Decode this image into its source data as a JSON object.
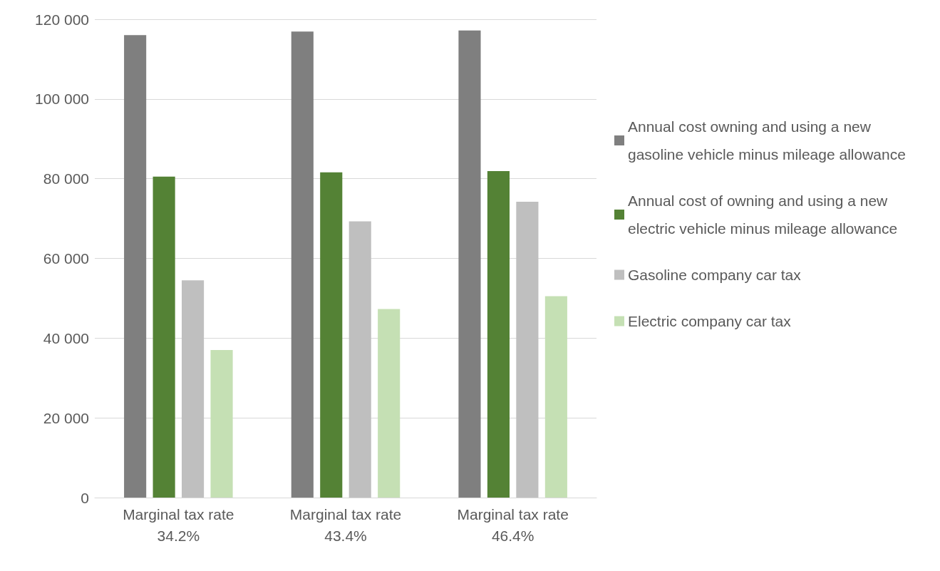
{
  "chart_data": {
    "type": "bar",
    "categories": [
      "Marginal tax rate\n34.2%",
      "Marginal tax rate\n43.4%",
      "Marginal tax rate\n46.4%"
    ],
    "series": [
      {
        "name": "Annual cost owning and using a new gasoline vehicle minus mileage allowance",
        "color": "#7f7f7f",
        "values": [
          116000,
          116900,
          117200
        ]
      },
      {
        "name": "Annual cost of owning and using a new electric vehicle minus mileage allowance",
        "color": "#548235",
        "values": [
          80500,
          81600,
          81900
        ]
      },
      {
        "name": "Gasoline company car tax",
        "color": "#bfbfbf",
        "values": [
          54500,
          69300,
          74200
        ]
      },
      {
        "name": "Electric company car tax",
        "color": "#c5e0b4",
        "values": [
          37000,
          47300,
          50500
        ]
      }
    ],
    "ylim": [
      0,
      120000
    ],
    "yticks": [
      {
        "value": 0,
        "label": "0"
      },
      {
        "value": 20000,
        "label": "20 000"
      },
      {
        "value": 40000,
        "label": "40 000"
      },
      {
        "value": 60000,
        "label": "60 000"
      },
      {
        "value": 80000,
        "label": "80 000"
      },
      {
        "value": 100000,
        "label": "100 000"
      },
      {
        "value": 120000,
        "label": "120 000"
      }
    ],
    "grid": "y",
    "legend": "right"
  }
}
